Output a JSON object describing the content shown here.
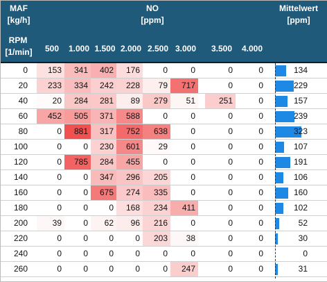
{
  "header": {
    "maf_label": "MAF",
    "maf_unit": "[kg/h]",
    "rpm_label": "RPM",
    "rpm_unit": "[1/min]",
    "no_label": "NO",
    "no_unit": "[ppm]",
    "mean_label": "Mittelwert",
    "mean_unit": "[ppm]",
    "maf_columns": [
      "500",
      "1.000",
      "1.500",
      "2.000",
      "2.500",
      "3.000",
      "3.500",
      "4.000"
    ]
  },
  "colors": {
    "header_bg": "#1f5a7a",
    "cell_max": "#f15050",
    "mean_bar": "#1e88e5"
  },
  "rows": [
    {
      "rpm": "0",
      "values": [
        153,
        341,
        402,
        176,
        0,
        0,
        0,
        0
      ],
      "mean": 134
    },
    {
      "rpm": "20",
      "values": [
        233,
        334,
        242,
        228,
        79,
        717,
        0,
        0
      ],
      "mean": 229
    },
    {
      "rpm": "40",
      "values": [
        20,
        284,
        281,
        89,
        279,
        51,
        251,
        0
      ],
      "mean": 157
    },
    {
      "rpm": "60",
      "values": [
        452,
        505,
        371,
        588,
        0,
        0,
        0,
        0
      ],
      "mean": 239
    },
    {
      "rpm": "80",
      "values": [
        0,
        881,
        317,
        752,
        638,
        0,
        0,
        0
      ],
      "mean": 323
    },
    {
      "rpm": "100",
      "values": [
        0,
        0,
        230,
        601,
        29,
        0,
        0,
        0
      ],
      "mean": 107
    },
    {
      "rpm": "120",
      "values": [
        0,
        785,
        284,
        455,
        0,
        0,
        0,
        0
      ],
      "mean": 191
    },
    {
      "rpm": "140",
      "values": [
        0,
        0,
        347,
        296,
        205,
        0,
        0,
        0
      ],
      "mean": 106
    },
    {
      "rpm": "160",
      "values": [
        0,
        0,
        675,
        274,
        335,
        0,
        0,
        0
      ],
      "mean": 160
    },
    {
      "rpm": "180",
      "values": [
        0,
        0,
        0,
        168,
        234,
        411,
        0,
        0
      ],
      "mean": 102
    },
    {
      "rpm": "200",
      "values": [
        39,
        0,
        62,
        96,
        216,
        0,
        0,
        0
      ],
      "mean": 52
    },
    {
      "rpm": "220",
      "values": [
        0,
        0,
        0,
        0,
        203,
        38,
        0,
        0
      ],
      "mean": 30
    },
    {
      "rpm": "240",
      "values": [
        0,
        0,
        0,
        0,
        0,
        0,
        0,
        0
      ],
      "mean": 0
    },
    {
      "rpm": "260",
      "values": [
        0,
        0,
        0,
        0,
        0,
        247,
        0,
        0
      ],
      "mean": 31
    }
  ]
}
